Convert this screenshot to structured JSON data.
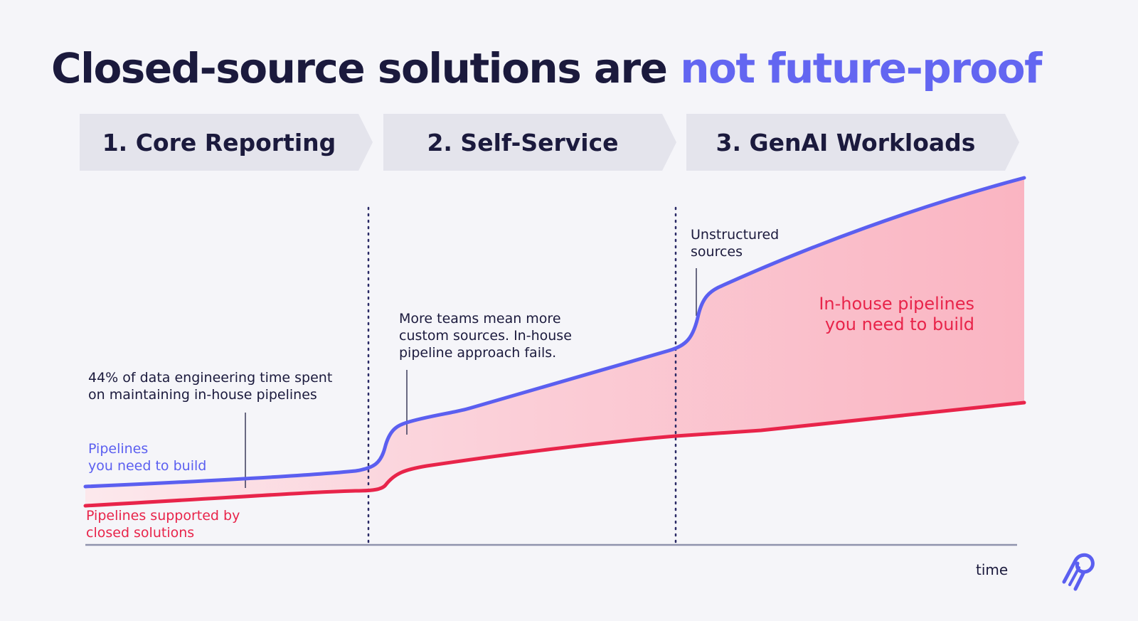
{
  "title": {
    "prefix": "Closed-source solutions are ",
    "accent": "not future-proof"
  },
  "phases": [
    {
      "label": "1. Core Reporting"
    },
    {
      "label": "2. Self-Service"
    },
    {
      "label": "3. GenAI Workloads"
    }
  ],
  "annotations": {
    "phase1": [
      "44% of data engineering time spent",
      "on maintaining in-house pipelines"
    ],
    "phase2": [
      "More teams mean more",
      "custom sources. In-house",
      "pipeline approach fails."
    ],
    "phase3": [
      "Unstructured",
      "sources"
    ],
    "area": [
      "In-house pipelines",
      "you need to build"
    ]
  },
  "series": {
    "need_to_build": {
      "label": [
        "Pipelines",
        "you need to build"
      ],
      "color": "#5b5ff0"
    },
    "closed_solutions": {
      "label": [
        "Pipelines supported by",
        "closed solutions"
      ],
      "color": "#e8244a"
    }
  },
  "axis": {
    "x_label": "time"
  },
  "colors": {
    "accent": "#6366f1",
    "area": "#fba9b8",
    "phase_box": "#e4e4ec",
    "dark_text": "#1b1a3d"
  },
  "logo": {
    "icon": "airbyte-logo-icon"
  }
}
